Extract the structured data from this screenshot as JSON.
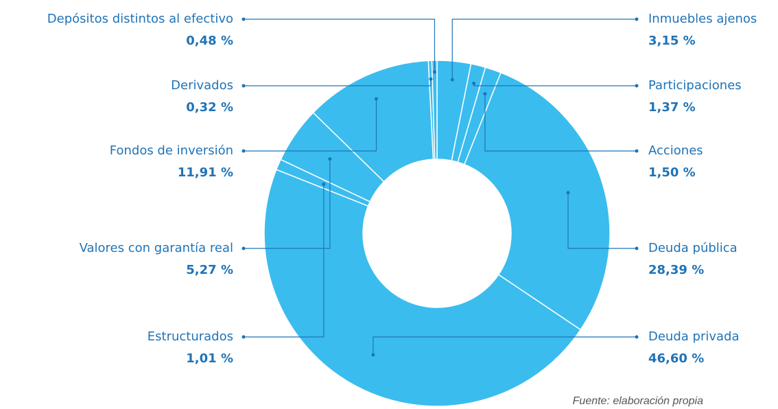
{
  "chart_data": {
    "type": "pie",
    "donut": true,
    "color": "#3bbcee",
    "categories": [
      "Inmuebles ajenos",
      "Participaciones",
      "Acciones",
      "Deuda pública",
      "Deuda privada",
      "Estructurados",
      "Valores con garantía real",
      "Fondos de inversión",
      "Derivados",
      "Depósitos distintos al efectivo"
    ],
    "values": [
      3.15,
      1.37,
      1.5,
      28.39,
      46.6,
      1.01,
      5.27,
      11.91,
      0.32,
      0.48
    ],
    "value_labels": [
      "3,15 %",
      "1,37 %",
      "1,50 %",
      "28,39 %",
      "46,60 %",
      "1,01 %",
      "5,27 %",
      "11,91 %",
      "0,32 %",
      "0,48 %"
    ],
    "source": "Fuente: elaboración propia"
  }
}
